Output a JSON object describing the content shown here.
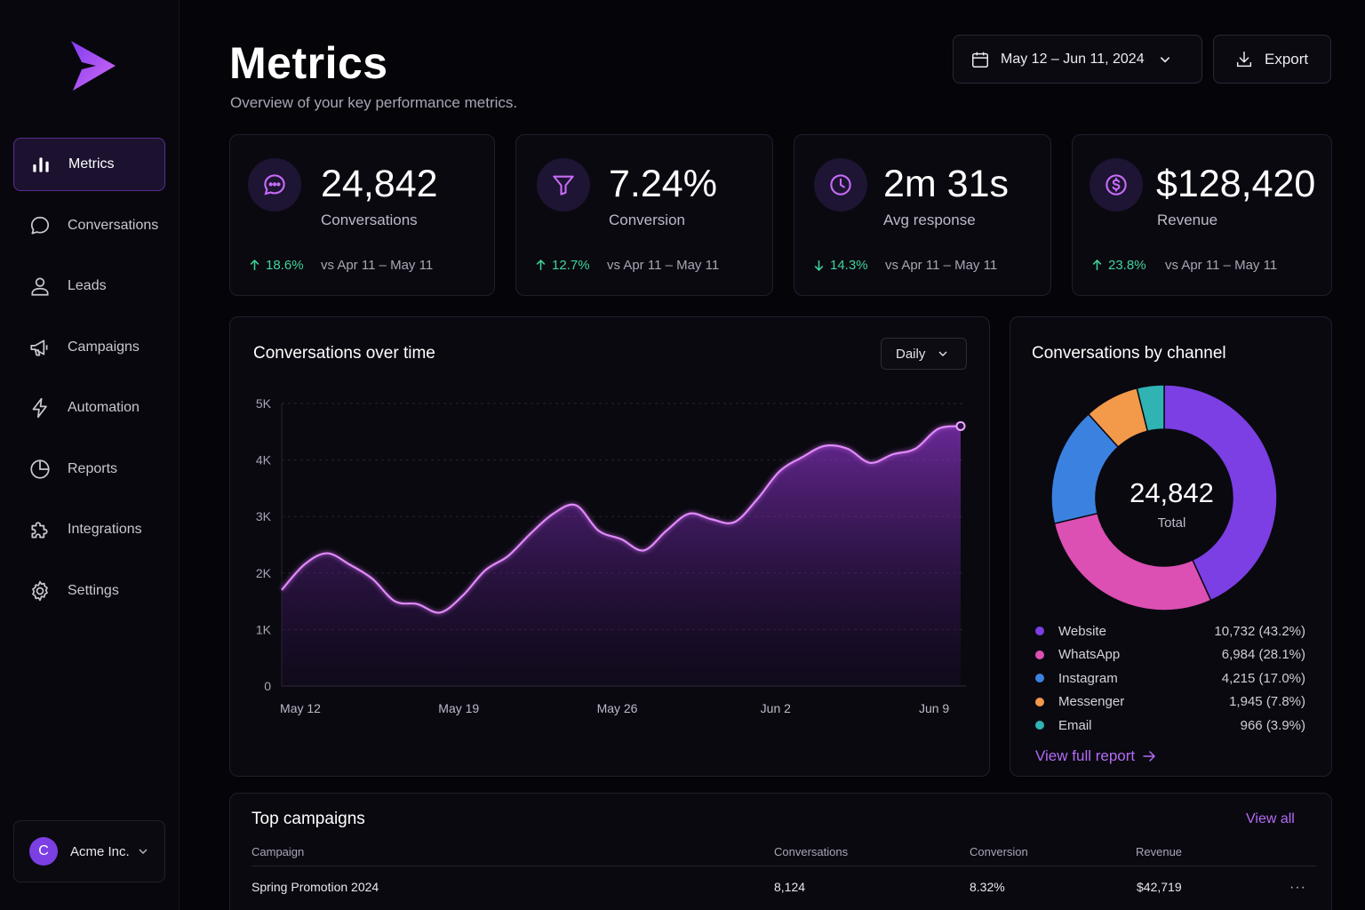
{
  "colors": {
    "accent": "#b26cf4",
    "brand": "#8a3ff0",
    "positive": "#3fd49a"
  },
  "sidebar": {
    "items": [
      {
        "label": "Metrics",
        "icon": "bar-chart-icon",
        "active": true
      },
      {
        "label": "Conversations",
        "icon": "chat-bubble-icon"
      },
      {
        "label": "Leads",
        "icon": "user-icon"
      },
      {
        "label": "Campaigns",
        "icon": "megaphone-icon"
      },
      {
        "label": "Automation",
        "icon": "lightning-icon"
      },
      {
        "label": "Reports",
        "icon": "pie-icon"
      },
      {
        "label": "Integrations",
        "icon": "puzzle-icon"
      },
      {
        "label": "Settings",
        "icon": "gear-icon"
      }
    ],
    "account": {
      "initial": "C",
      "name": "Acme Inc."
    }
  },
  "header": {
    "title": "Metrics",
    "subtitle": "Overview of your key performance metrics.",
    "date_range": "May 12 – Jun 11, 2024",
    "export_label": "Export"
  },
  "kpis": [
    {
      "value": "24,842",
      "label": "Conversations",
      "delta": "18.6%",
      "direction": "up",
      "compare": "vs Apr 11 – May 11",
      "icon": "chat-icon"
    },
    {
      "value": "7.24%",
      "label": "Conversion",
      "delta": "12.7%",
      "direction": "up",
      "compare": "vs Apr 11 – May 11",
      "icon": "funnel-icon"
    },
    {
      "value": "2m 31s",
      "label": "Avg response",
      "delta": "14.3%",
      "direction": "down",
      "compare": "vs Apr 11 – May 11",
      "icon": "clock-icon"
    },
    {
      "value": "$128,420",
      "label": "Revenue",
      "delta": "23.8%",
      "direction": "up",
      "compare": "vs Apr 11 – May 11",
      "icon": "dollar-icon"
    }
  ],
  "conversations_chart": {
    "title": "Conversations over time",
    "period_label": "Daily"
  },
  "channel_chart": {
    "title": "Conversations by channel",
    "total": "24,842",
    "total_label": "Total",
    "view_report": "View full report",
    "legend": [
      {
        "name": "Website",
        "value": "10,732",
        "pct": "(43.2%)",
        "color": "#7b3fe4"
      },
      {
        "name": "WhatsApp",
        "value": "6,984",
        "pct": "(28.1%)",
        "color": "#dc4fb3"
      },
      {
        "name": "Instagram",
        "value": "4,215",
        "pct": "(17.0%)",
        "color": "#3b82e0"
      },
      {
        "name": "Messenger",
        "value": "1,945",
        "pct": "(7.8%)",
        "color": "#f2994a"
      },
      {
        "name": "Email",
        "value": "966",
        "pct": "(3.9%)",
        "color": "#2fb3b3"
      }
    ]
  },
  "campaigns": {
    "title": "Top campaigns",
    "view_all": "View all",
    "columns": [
      "Campaign",
      "Conversations",
      "Conversion",
      "Revenue"
    ],
    "rows": [
      {
        "campaign": "Spring Promotion 2024",
        "conversations": "8,124",
        "conversion": "8.32%",
        "revenue": "$42,719",
        "more": "···"
      }
    ]
  },
  "chart_data": [
    {
      "type": "area",
      "title": "Conversations over time",
      "xlabel": "",
      "ylabel": "",
      "ylim": [
        0,
        5000
      ],
      "y_ticks": [
        "0",
        "1K",
        "2K",
        "3K",
        "4K",
        "5K"
      ],
      "x_ticks": [
        "May 12",
        "May 19",
        "May 26",
        "Jun 2",
        "Jun 9"
      ],
      "x": [
        "May 12",
        "May 13",
        "May 14",
        "May 15",
        "May 16",
        "May 17",
        "May 18",
        "May 19",
        "May 20",
        "May 21",
        "May 22",
        "May 23",
        "May 24",
        "May 25",
        "May 26",
        "May 27",
        "May 28",
        "May 29",
        "May 30",
        "May 31",
        "Jun 1",
        "Jun 2",
        "Jun 3",
        "Jun 4",
        "Jun 5",
        "Jun 6",
        "Jun 7",
        "Jun 8",
        "Jun 9",
        "Jun 10",
        "Jun 11"
      ],
      "series": [
        {
          "values": [
            1700,
            2150,
            2350,
            2150,
            1900,
            1500,
            1450,
            1300,
            1600,
            2050,
            2300,
            2700,
            3050,
            3200,
            2750,
            2600,
            2400,
            2750,
            3050,
            2950,
            2900,
            3300,
            3800,
            4050,
            4250,
            4200,
            3950,
            4100,
            4200,
            4550,
            4600
          ]
        }
      ],
      "grid": true
    },
    {
      "type": "pie",
      "title": "Conversations by channel",
      "categories": [
        "Website",
        "WhatsApp",
        "Instagram",
        "Messenger",
        "Email"
      ],
      "values": [
        10732,
        6984,
        4215,
        1945,
        966
      ],
      "total": 24842
    }
  ]
}
